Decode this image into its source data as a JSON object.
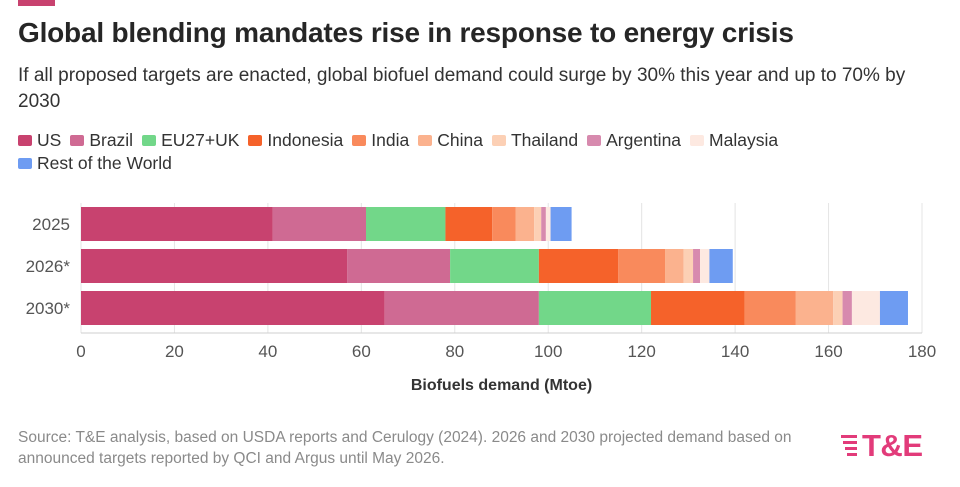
{
  "header": {
    "title": "Global blending mandates rise in response to energy crisis",
    "subtitle": "If all proposed targets are enacted, global biofuel demand could surge by 30% this year and up to 70% by 2030"
  },
  "footer": {
    "source": "Source: T&E analysis, based on USDA reports and Cerulogy (2024). 2026 and 2030 projected demand based on announced targets reported by QCI and Argus until May 2026.",
    "logo_text": "T&E"
  },
  "colors": {
    "accent": "#c8426f",
    "logo": "#e23b7a"
  },
  "chart_data": {
    "type": "bar",
    "orientation": "horizontal",
    "stacked": true,
    "categories": [
      "2025",
      "2026*",
      "2030*"
    ],
    "series": [
      {
        "name": "US",
        "color": "#c8426f",
        "values": [
          41,
          57,
          65
        ]
      },
      {
        "name": "Brazil",
        "color": "#cf6a93",
        "values": [
          20,
          22,
          33
        ]
      },
      {
        "name": "EU27+UK",
        "color": "#72d789",
        "values": [
          17,
          19,
          24
        ]
      },
      {
        "name": "Indonesia",
        "color": "#f5622a",
        "values": [
          10,
          17,
          20
        ]
      },
      {
        "name": "India",
        "color": "#f98a5c",
        "values": [
          5,
          10,
          11
        ]
      },
      {
        "name": "China",
        "color": "#fbb28e",
        "values": [
          4,
          4,
          8
        ]
      },
      {
        "name": "Thailand",
        "color": "#fcd0b5",
        "values": [
          1.5,
          2,
          2
        ]
      },
      {
        "name": "Argentina",
        "color": "#d78aae",
        "values": [
          1,
          1.5,
          2
        ]
      },
      {
        "name": "Malaysia",
        "color": "#fde9e1",
        "values": [
          1,
          2,
          6
        ]
      },
      {
        "name": "Rest of the World",
        "color": "#6e9cf2",
        "values": [
          4.5,
          5,
          6
        ]
      }
    ],
    "xlabel": "Biofuels demand (Mtoe)",
    "ylabel": "",
    "xlim": [
      0,
      180
    ],
    "x_ticks": [
      0,
      20,
      40,
      60,
      80,
      100,
      120,
      140,
      160,
      180
    ],
    "grid": "vertical",
    "legend_position": "top-left"
  }
}
